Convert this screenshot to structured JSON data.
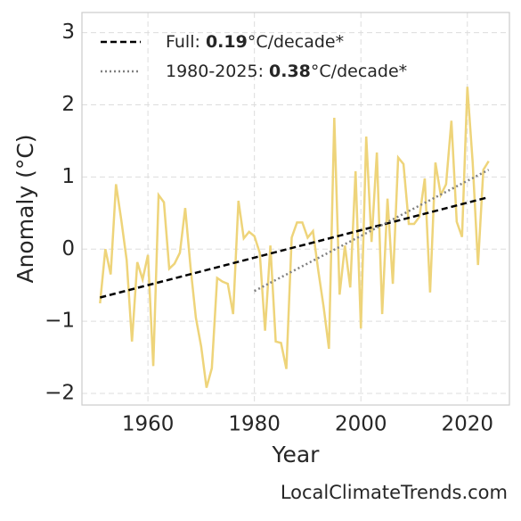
{
  "chart_data": {
    "type": "line",
    "xlabel": "Year",
    "ylabel": "Anomaly (°C)",
    "watermark": "LocalClimateTrends.com",
    "xlim": [
      1947.6,
      2027.9
    ],
    "ylim": [
      -2.16,
      3.28
    ],
    "xticks": [
      1960,
      1980,
      2000,
      2020
    ],
    "yticks": [
      {
        "value": -2,
        "label": "−2"
      },
      {
        "value": -1,
        "label": "−1"
      },
      0,
      1,
      2,
      3
    ],
    "grid": true,
    "legend": "upper left",
    "series": [
      {
        "color": "#eed47a",
        "style": "solid",
        "x": [
          1951,
          1952,
          1953,
          1954,
          1955,
          1956,
          1957,
          1958,
          1959,
          1960,
          1961,
          1962,
          1963,
          1964,
          1965,
          1966,
          1967,
          1968,
          1969,
          1970,
          1971,
          1972,
          1973,
          1974,
          1975,
          1976,
          1977,
          1978,
          1979,
          1980,
          1981,
          1982,
          1983,
          1984,
          1985,
          1986,
          1987,
          1988,
          1989,
          1990,
          1991,
          1992,
          1993,
          1994,
          1995,
          1996,
          1997,
          1998,
          1999,
          2000,
          2001,
          2002,
          2003,
          2004,
          2005,
          2006,
          2007,
          2008,
          2009,
          2010,
          2011,
          2012,
          2013,
          2014,
          2015,
          2016,
          2017,
          2018,
          2019,
          2020,
          2021,
          2022,
          2023,
          2024
        ],
        "values": [
          -0.75,
          0.0,
          -0.35,
          0.9,
          0.4,
          -0.15,
          -1.28,
          -0.18,
          -0.42,
          -0.08,
          -1.62,
          0.75,
          0.65,
          -0.27,
          -0.2,
          -0.05,
          0.57,
          -0.25,
          -0.95,
          -1.35,
          -1.92,
          -1.65,
          -0.4,
          -0.45,
          -0.48,
          -0.9,
          0.67,
          0.15,
          0.24,
          0.18,
          -0.05,
          -1.13,
          0.05,
          -1.28,
          -1.3,
          -1.66,
          0.16,
          0.37,
          0.37,
          0.16,
          0.25,
          -0.3,
          -0.8,
          -1.38,
          1.82,
          -0.63,
          0.05,
          -0.53,
          1.08,
          -1.1,
          1.56,
          0.1,
          1.34,
          -0.9,
          0.7,
          -0.48,
          1.27,
          1.18,
          0.35,
          0.35,
          0.45,
          0.98,
          -0.6,
          1.2,
          0.75,
          0.9,
          1.78,
          0.38,
          0.17,
          2.25,
          1.2,
          -0.22,
          1.1,
          1.22
        ]
      },
      {
        "name": "Full: ",
        "slope": "0.19",
        "unit": "°C/decade*",
        "color": "#000000",
        "style": "dashed",
        "x": [
          1951,
          2024
        ],
        "values": [
          -0.67,
          0.72
        ]
      },
      {
        "name": "1980-2025: ",
        "slope": "0.38",
        "unit": "°C/decade*",
        "color": "#808080",
        "style": "dotted",
        "x": [
          1980,
          2024
        ],
        "values": [
          -0.58,
          1.1
        ]
      }
    ]
  }
}
